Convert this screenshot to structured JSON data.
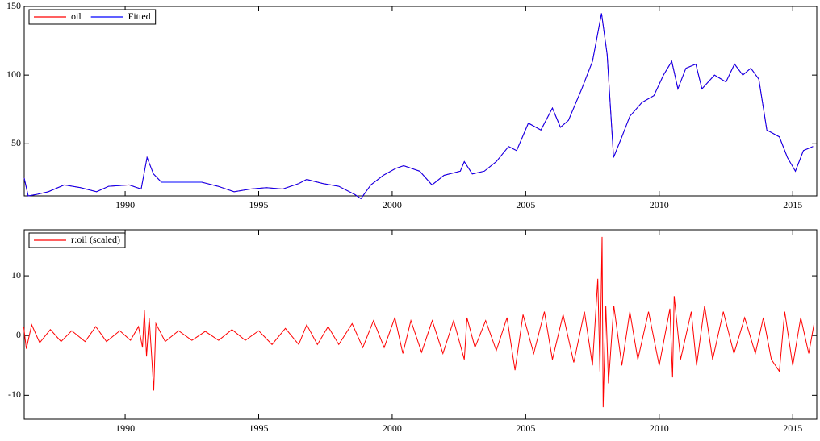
{
  "chart_data": [
    {
      "type": "line",
      "x": [
        1986.22,
        1986.37,
        1986.67,
        1987.12,
        1987.72,
        1988.33,
        1988.93,
        1989.38,
        1990.15,
        1990.6,
        1990.82,
        1991.06,
        1991.36,
        1992.27,
        1992.87,
        1993.48,
        1994.08,
        1994.69,
        1995.29,
        1995.9,
        1996.5,
        1996.8,
        1997.4,
        1998.0,
        1998.6,
        1998.83,
        1999.2,
        1999.67,
        2000.13,
        2000.43,
        2001.03,
        2001.49,
        2001.94,
        2002.55,
        2002.7,
        2003.0,
        2003.45,
        2003.9,
        2004.36,
        2004.66,
        2005.1,
        2005.57,
        2006.0,
        2006.3,
        2006.6,
        2007.1,
        2007.5,
        2007.84,
        2008.05,
        2008.29,
        2008.6,
        2008.9,
        2009.35,
        2009.8,
        2010.16,
        2010.47,
        2010.7,
        2011.0,
        2011.37,
        2011.6,
        2012.07,
        2012.5,
        2012.82,
        2013.13,
        2013.43,
        2013.73,
        2014.03,
        2014.5,
        2014.8,
        2015.1,
        2015.4,
        2015.76
      ],
      "series": [
        {
          "name": "oil",
          "color": "#ff0000",
          "values": [
            25,
            12,
            13,
            15,
            20,
            18,
            15,
            19,
            20,
            17,
            40,
            28,
            22,
            22,
            22,
            19,
            15,
            17,
            18,
            17,
            21,
            24,
            21,
            19,
            13,
            10,
            20,
            27,
            32,
            34,
            30,
            20,
            27,
            30,
            37,
            28,
            30,
            37,
            48,
            45,
            65,
            60,
            76,
            62,
            67,
            90,
            110,
            145,
            115,
            40,
            55,
            70,
            80,
            85,
            100,
            110,
            90,
            105,
            108,
            90,
            100,
            95,
            108,
            100,
            105,
            97,
            60,
            55,
            40,
            30,
            45,
            48
          ]
        },
        {
          "name": "Fitted",
          "color": "#0000ff",
          "values": [
            25,
            12,
            13,
            15,
            20,
            18,
            15,
            19,
            20,
            17,
            40,
            28,
            22,
            22,
            22,
            19,
            15,
            17,
            18,
            17,
            21,
            24,
            21,
            19,
            13,
            10,
            20,
            27,
            32,
            34,
            30,
            20,
            27,
            30,
            37,
            28,
            30,
            37,
            48,
            45,
            65,
            60,
            76,
            62,
            67,
            90,
            110,
            145,
            115,
            40,
            55,
            70,
            80,
            85,
            100,
            110,
            90,
            105,
            108,
            90,
            100,
            95,
            108,
            100,
            105,
            97,
            60,
            55,
            40,
            30,
            45,
            48
          ]
        }
      ],
      "xlim": [
        1986.22,
        2015.9
      ],
      "xticks": [
        1990,
        1995,
        2000,
        2005,
        2010,
        2015
      ],
      "ylim": [
        12,
        150
      ],
      "yticks": [
        50,
        100,
        150
      ]
    },
    {
      "type": "line",
      "x": [
        1986.2,
        1986.3,
        1986.5,
        1986.8,
        1987.2,
        1987.6,
        1988.0,
        1988.5,
        1988.9,
        1989.3,
        1989.8,
        1990.2,
        1990.5,
        1990.65,
        1990.72,
        1990.8,
        1990.9,
        1991.0,
        1991.07,
        1991.15,
        1991.5,
        1992.0,
        1992.5,
        1993.0,
        1993.5,
        1994.0,
        1994.5,
        1995.0,
        1995.5,
        1996.0,
        1996.5,
        1996.8,
        1997.2,
        1997.6,
        1998.0,
        1998.5,
        1998.9,
        1999.3,
        1999.7,
        2000.1,
        2000.4,
        2000.7,
        2001.1,
        2001.5,
        2001.9,
        2002.3,
        2002.7,
        2002.8,
        2003.1,
        2003.5,
        2003.9,
        2004.3,
        2004.6,
        2004.9,
        2005.3,
        2005.7,
        2006.0,
        2006.4,
        2006.8,
        2007.2,
        2007.5,
        2007.7,
        2007.78,
        2007.86,
        2007.9,
        2008.0,
        2008.1,
        2008.3,
        2008.6,
        2008.9,
        2009.2,
        2009.6,
        2010.0,
        2010.4,
        2010.5,
        2010.56,
        2010.8,
        2011.2,
        2011.4,
        2011.7,
        2012.0,
        2012.4,
        2012.8,
        2013.2,
        2013.6,
        2013.9,
        2014.2,
        2014.5,
        2014.7,
        2015.0,
        2015.3,
        2015.6,
        2015.8
      ],
      "series": [
        {
          "name": "r:oil (scaled)",
          "color": "#ff0000",
          "values": [
            1.5,
            -2.2,
            1.8,
            -1.2,
            1,
            -1,
            0.8,
            -1,
            1.5,
            -1,
            0.8,
            -0.8,
            1.5,
            -2,
            4.2,
            -3.5,
            3,
            -4,
            -9.2,
            2,
            -1,
            0.8,
            -0.8,
            0.7,
            -0.8,
            1,
            -0.8,
            0.8,
            -1.5,
            1.2,
            -1.5,
            1.8,
            -1.5,
            1.5,
            -1.5,
            2,
            -2,
            2.5,
            -2,
            3,
            -3,
            2.5,
            -2.8,
            2.5,
            -3,
            2.5,
            -4,
            3,
            -2,
            2.5,
            -2.5,
            3,
            -5.8,
            3.5,
            -3,
            4,
            -4,
            3.5,
            -4.5,
            4,
            -5,
            9.5,
            -6,
            16.5,
            -12,
            5,
            -8,
            5,
            -5,
            4,
            -4,
            4,
            -5,
            4.5,
            -7,
            6.6,
            -4,
            4,
            -5,
            5,
            -4,
            4,
            -3,
            3,
            -3,
            3,
            -4,
            -6,
            4,
            -5,
            3,
            -3,
            2
          ]
        }
      ],
      "xlim": [
        1986.22,
        2015.9
      ],
      "xticks": [
        1990,
        1995,
        2000,
        2005,
        2010,
        2015
      ],
      "ylim": [
        -14,
        17.7
      ],
      "yticks": [
        -10,
        0,
        10
      ]
    }
  ]
}
